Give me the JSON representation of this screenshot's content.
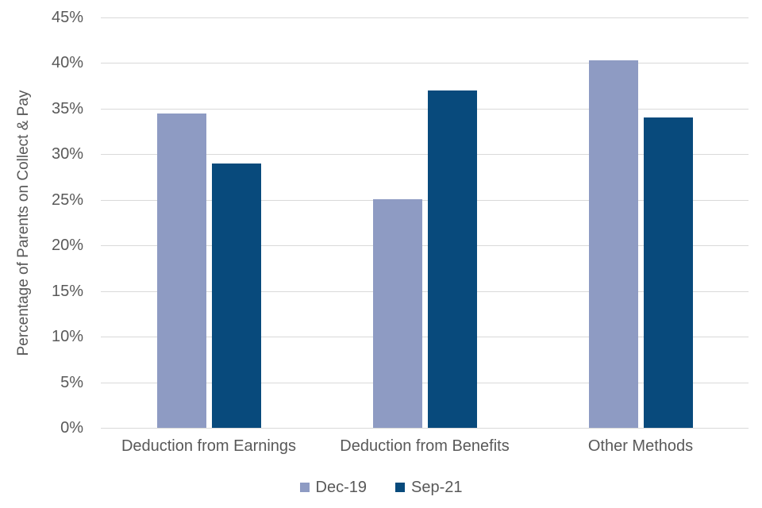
{
  "chart_data": {
    "type": "bar",
    "title": "",
    "xlabel": "",
    "ylabel": "Percentage of Parents on Collect & Pay",
    "categories": [
      "Deduction from Earnings",
      "Deduction from Benefits",
      "Other Methods"
    ],
    "series": [
      {
        "name": "Dec-19",
        "color": "#8E9BC3",
        "values": [
          34.5,
          25.1,
          40.3
        ]
      },
      {
        "name": "Sep-21",
        "color": "#084A7C",
        "values": [
          29.0,
          37.0,
          34.0
        ]
      }
    ],
    "ylim": [
      0,
      45
    ],
    "ytick_step": 5,
    "ytick_labels": [
      "0%",
      "5%",
      "10%",
      "15%",
      "20%",
      "25%",
      "30%",
      "35%",
      "40%",
      "45%"
    ],
    "grid": true,
    "legend_position": "bottom"
  },
  "colors": {
    "text": "#595959",
    "gridline": "#D9D9D9",
    "background": "#FFFFFF"
  }
}
